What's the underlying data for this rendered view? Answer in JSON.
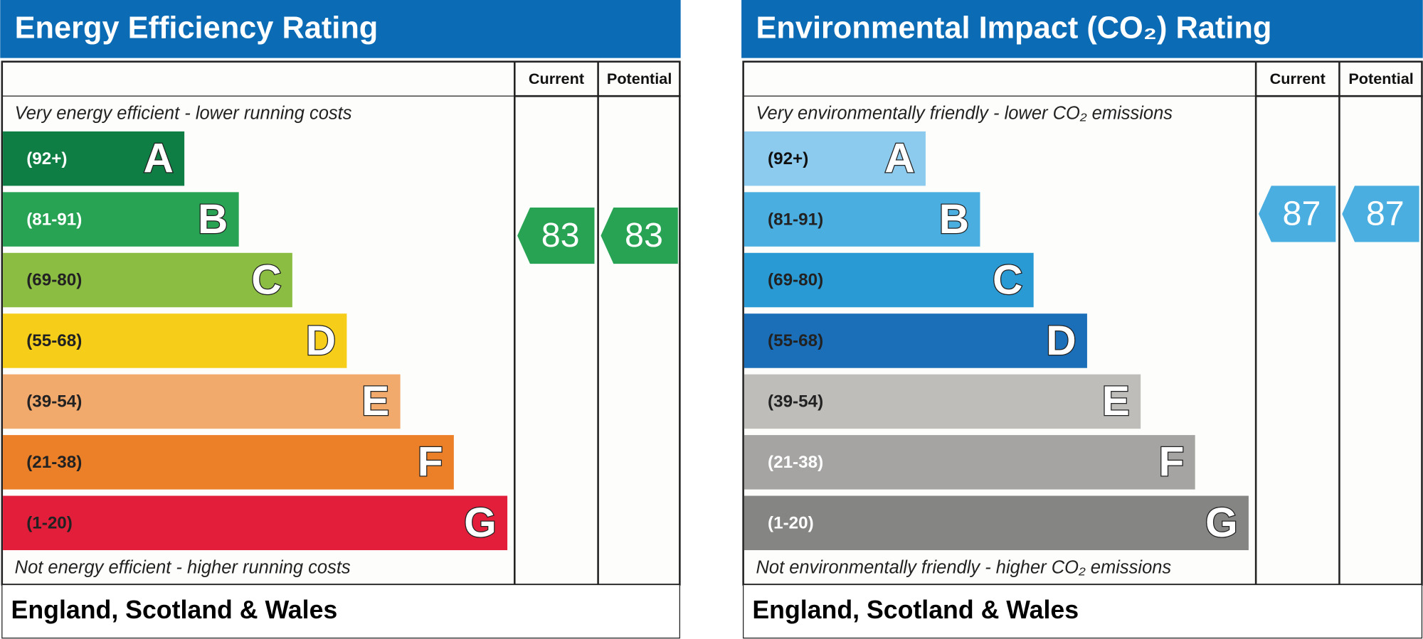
{
  "panels": [
    {
      "title": "Energy Efficiency Rating",
      "current_header": "Current",
      "potential_header": "Potential",
      "top_note": "Very energy efficient - lower running costs",
      "bottom_note": "Not energy efficient - higher running costs",
      "footer": "England, Scotland & Wales",
      "header_color": "#0c6bb5",
      "arrow_color": "#27a353",
      "bands": [
        {
          "range": "(92+)",
          "letter": "A",
          "color": "#0f7e44",
          "text_color": "#ffffff"
        },
        {
          "range": "(81-91)",
          "letter": "B",
          "color": "#27a353",
          "text_color": "#ffffff"
        },
        {
          "range": "(69-80)",
          "letter": "C",
          "color": "#8cbd43",
          "text_color": "#222222"
        },
        {
          "range": "(55-68)",
          "letter": "D",
          "color": "#f6cd18",
          "text_color": "#222222"
        },
        {
          "range": "(39-54)",
          "letter": "E",
          "color": "#f2aa6c",
          "text_color": "#222222"
        },
        {
          "range": "(21-38)",
          "letter": "F",
          "color": "#ec8028",
          "text_color": "#222222"
        },
        {
          "range": "(1-20)",
          "letter": "G",
          "color": "#e31e3b",
          "text_color": "#222222"
        }
      ],
      "current": 83,
      "potential": 83
    },
    {
      "title": "Environmental Impact (CO₂) Rating",
      "current_header": "Current",
      "potential_header": "Potential",
      "top_note": "Very environmentally friendly - lower CO₂ emissions",
      "bottom_note": "Not environmentally friendly - higher CO₂ emissions",
      "footer": "England, Scotland & Wales",
      "header_color": "#0c6bb5",
      "arrow_color": "#4aaee0",
      "bands": [
        {
          "range": "(92+)",
          "letter": "A",
          "color": "#8ccbed",
          "text_color": "#111111"
        },
        {
          "range": "(81-91)",
          "letter": "B",
          "color": "#4aaee0",
          "text_color": "#222222"
        },
        {
          "range": "(69-80)",
          "letter": "C",
          "color": "#2a9ad4",
          "text_color": "#222222"
        },
        {
          "range": "(55-68)",
          "letter": "D",
          "color": "#1a6fb8",
          "text_color": "#222222"
        },
        {
          "range": "(39-54)",
          "letter": "E",
          "color": "#bebdba",
          "text_color": "#222222"
        },
        {
          "range": "(21-38)",
          "letter": "F",
          "color": "#a5a4a2",
          "text_color": "#ffffff"
        },
        {
          "range": "(1-20)",
          "letter": "G",
          "color": "#858584",
          "text_color": "#ffffff"
        }
      ],
      "current": 87,
      "potential": 87
    }
  ]
}
